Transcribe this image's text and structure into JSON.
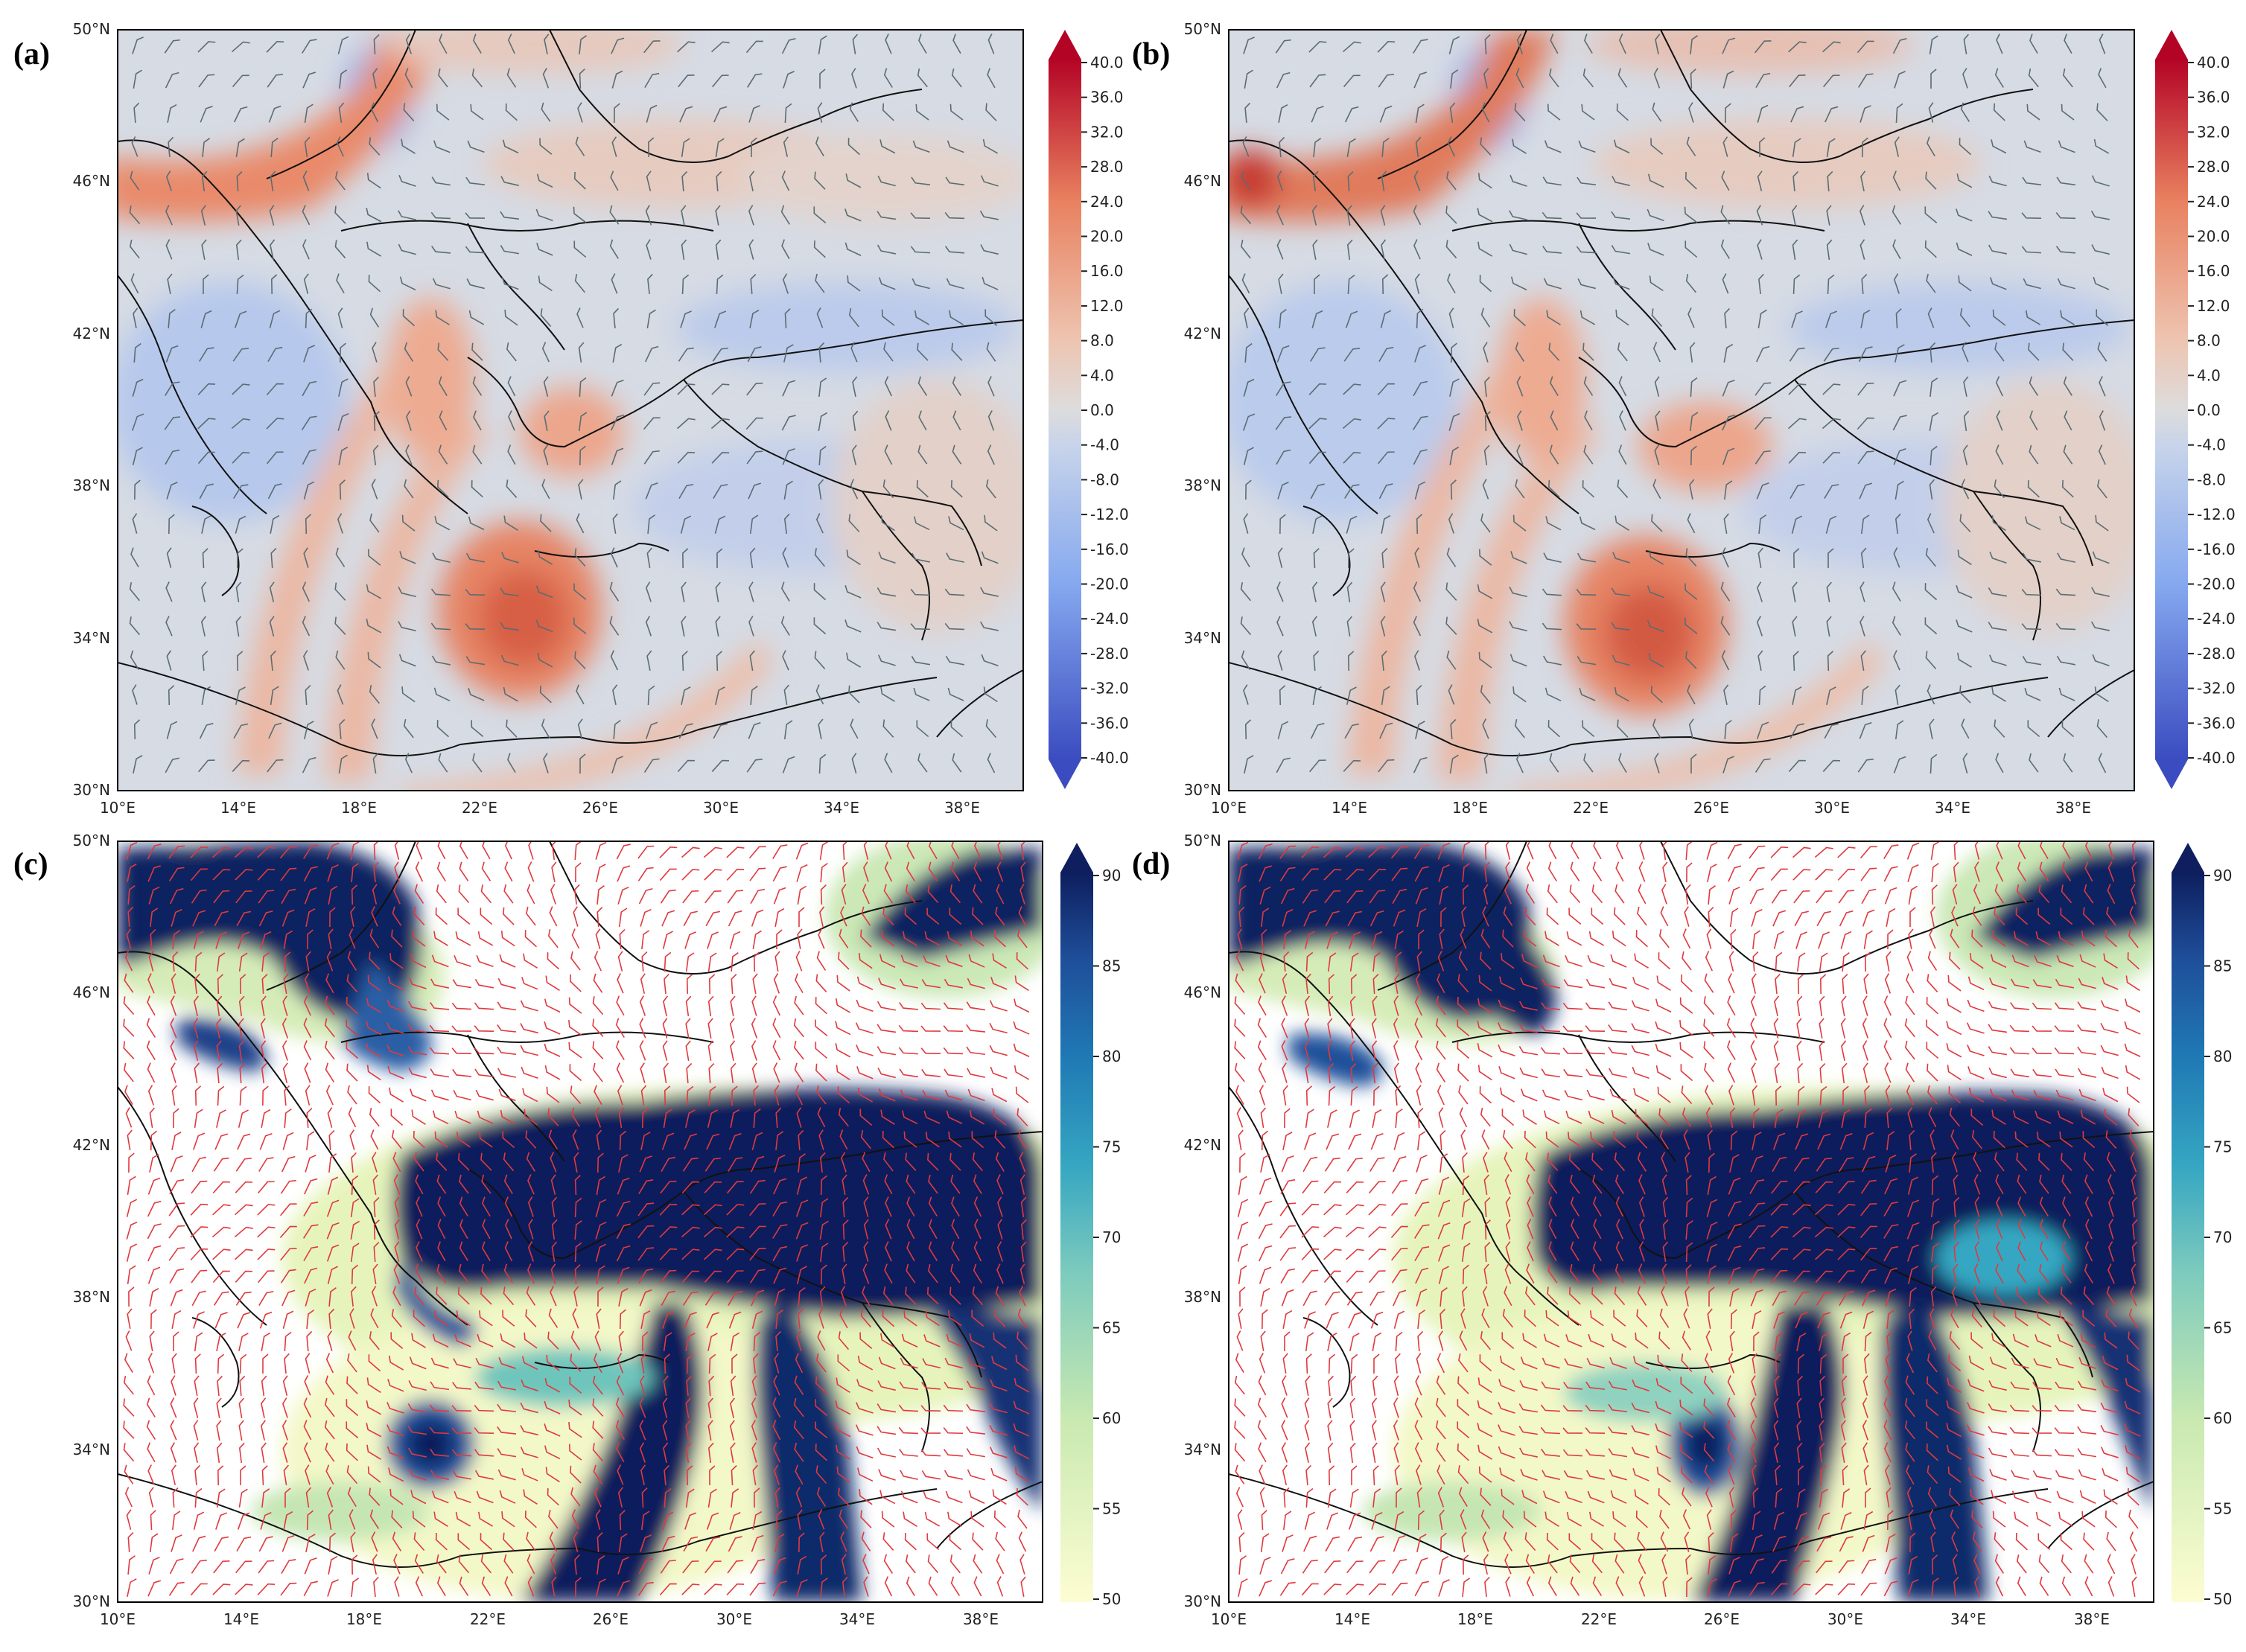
{
  "figure": {
    "panels": [
      {
        "id": "a",
        "label": "(a)",
        "variable": "temperature-anomaly",
        "lat_labels": [
          "50°N",
          "46°N",
          "42°N",
          "38°N",
          "34°N",
          "30°N"
        ],
        "lon_labels": [
          "10°E",
          "14°E",
          "18°E",
          "22°E",
          "26°E",
          "30°E",
          "34°E",
          "38°E"
        ],
        "colorbar": {
          "colormap": "red-blue diverging",
          "range": [
            -40,
            40
          ],
          "ticks": [
            "40.0",
            "36.0",
            "32.0",
            "28.0",
            "24.0",
            "20.0",
            "16.0",
            "12.0",
            "8.0",
            "4.0",
            "0.0",
            "-4.0",
            "-8.0",
            "-12.0",
            "-16.0",
            "-20.0",
            "-24.0",
            "-28.0",
            "-32.0",
            "-36.0",
            "-40.0"
          ]
        },
        "barb_color": "#5a6d72"
      },
      {
        "id": "b",
        "label": "(b)",
        "variable": "temperature-anomaly",
        "lat_labels": [
          "50°N",
          "46°N",
          "42°N",
          "38°N",
          "34°N",
          "30°N"
        ],
        "lon_labels": [
          "10°E",
          "14°E",
          "18°E",
          "22°E",
          "26°E",
          "30°E",
          "34°E",
          "38°E"
        ],
        "colorbar": {
          "colormap": "red-blue diverging",
          "range": [
            -40,
            40
          ],
          "ticks": [
            "40.0",
            "36.0",
            "32.0",
            "28.0",
            "24.0",
            "20.0",
            "16.0",
            "12.0",
            "8.0",
            "4.0",
            "0.0",
            "-4.0",
            "-8.0",
            "-12.0",
            "-16.0",
            "-20.0",
            "-24.0",
            "-28.0",
            "-32.0",
            "-36.0",
            "-40.0"
          ]
        },
        "barb_color": "#5a6d72"
      },
      {
        "id": "c",
        "label": "(c)",
        "variable": "relative-humidity",
        "lat_labels": [
          "50°N",
          "46°N",
          "42°N",
          "38°N",
          "34°N",
          "30°N"
        ],
        "lon_labels": [
          "10°E",
          "14°E",
          "18°E",
          "22°E",
          "26°E",
          "30°E",
          "34°E",
          "38°E"
        ],
        "colorbar": {
          "colormap": "yellow-green-blue sequential",
          "range": [
            50,
            90
          ],
          "ticks": [
            "90",
            "85",
            "80",
            "75",
            "70",
            "65",
            "60",
            "55",
            "50"
          ]
        },
        "barb_color": "#e0393e"
      },
      {
        "id": "d",
        "label": "(d)",
        "variable": "relative-humidity",
        "lat_labels": [
          "50°N",
          "46°N",
          "42°N",
          "38°N",
          "34°N",
          "30°N"
        ],
        "lon_labels": [
          "10°E",
          "14°E",
          "18°E",
          "22°E",
          "26°E",
          "30°E",
          "34°E",
          "38°E"
        ],
        "colorbar": {
          "colormap": "yellow-green-blue sequential",
          "range": [
            50,
            90
          ],
          "ticks": [
            "90",
            "85",
            "80",
            "75",
            "70",
            "65",
            "60",
            "55",
            "50"
          ]
        },
        "barb_color": "#e0393e"
      }
    ],
    "colors": {
      "diverging": [
        "#3b4cc0",
        "#5b7ee0",
        "#85a8ef",
        "#b3c8ee",
        "#d4dbe6",
        "#e7d6cf",
        "#f1b79c",
        "#e8805f",
        "#d1493b",
        "#b40426"
      ],
      "humidity": [
        "#fdfdd2",
        "#e9f5b1",
        "#b7e2b2",
        "#6fc7bd",
        "#34a7c2",
        "#1f78b4",
        "#1f4f9a",
        "#0e1e5e"
      ],
      "background_neutral": "#d5dae4",
      "coastline": "#111111"
    }
  }
}
